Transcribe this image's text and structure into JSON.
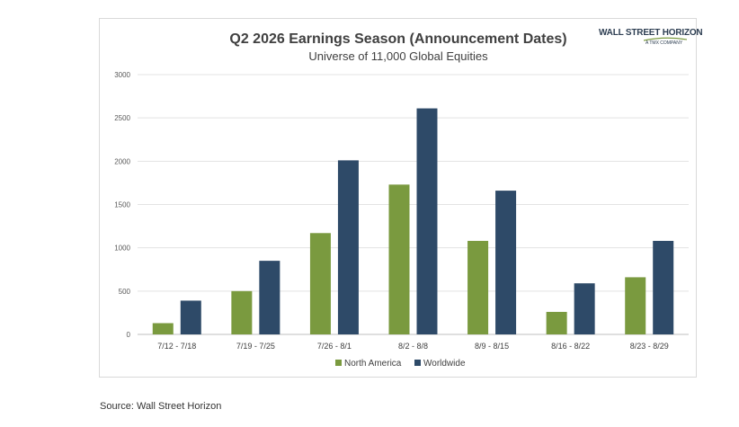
{
  "chart_data": {
    "type": "bar",
    "title": "Q2 2026 Earnings Season (Announcement Dates)",
    "subtitle": "Universe of 11,000 Global Equities",
    "categories": [
      "7/12 - 7/18",
      "7/19 - 7/25",
      "7/26 - 8/1",
      "8/2 - 8/8",
      "8/9 - 8/15",
      "8/16 - 8/22",
      "8/23 - 8/29"
    ],
    "series": [
      {
        "name": "North America",
        "color": "#7a9a3f",
        "values": [
          130,
          500,
          1170,
          1730,
          1080,
          260,
          660
        ]
      },
      {
        "name": "Worldwide",
        "color": "#2e4a68",
        "values": [
          390,
          850,
          2010,
          2610,
          1660,
          590,
          1080
        ]
      }
    ],
    "yticks": [
      0,
      500,
      1000,
      1500,
      2000,
      2500,
      3000
    ],
    "ylim": [
      0,
      3000
    ],
    "grid": true,
    "legend": "bottom-center"
  },
  "logo": {
    "text": "WALL STREET HORIZON",
    "subtext": "A TMX COMPANY"
  },
  "source": "Source: Wall Street Horizon"
}
